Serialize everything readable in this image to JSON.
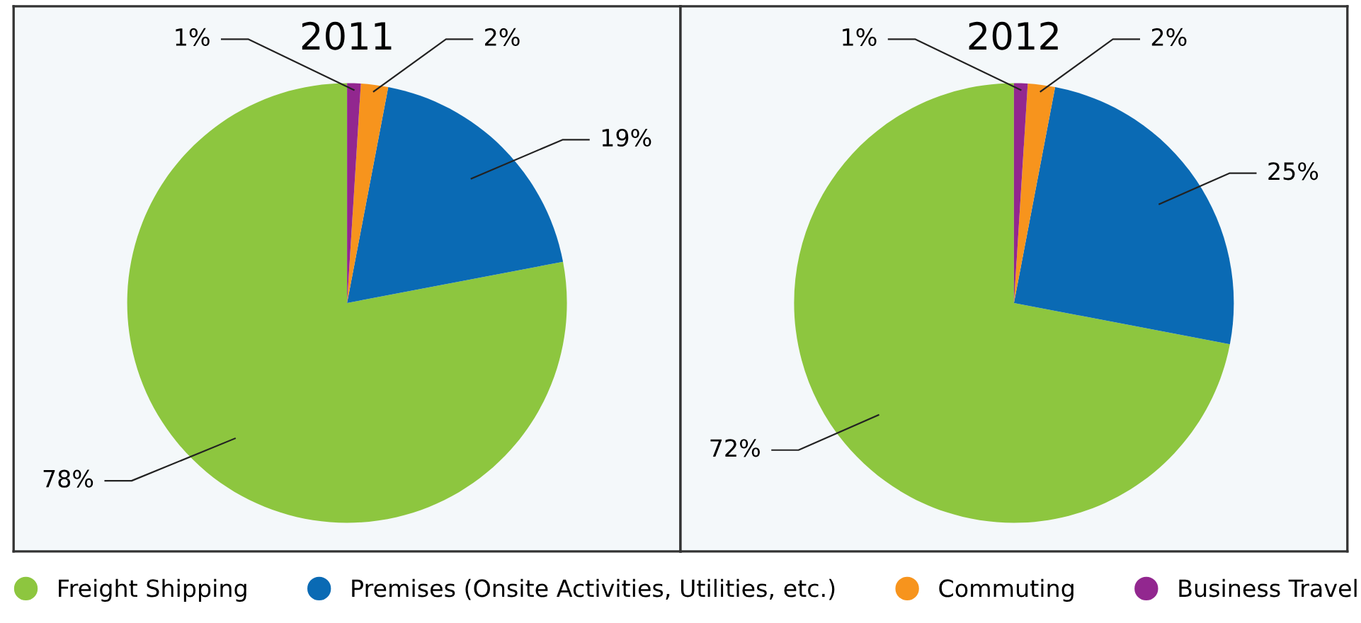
{
  "chart_data": [
    {
      "type": "pie",
      "title": "2011",
      "categories": [
        "Freight Shipping",
        "Premises (Onsite Activities, Utilities, etc.)",
        "Commuting",
        "Business Travel"
      ],
      "values": [
        78,
        19,
        2,
        1
      ],
      "colors": [
        "#8dc63f",
        "#0a6ab4",
        "#f7941d",
        "#92278f"
      ],
      "value_labels": [
        "78%",
        "19%",
        "2%",
        "1%"
      ],
      "legend": "bottom"
    },
    {
      "type": "pie",
      "title": "2012",
      "categories": [
        null,
        null,
        null,
        null
      ],
      "values": [
        72,
        25,
        2,
        1
      ],
      "colors": [
        "#8dc63f",
        "#0a6ab4",
        "#f7941d",
        "#92278f"
      ],
      "value_labels": [
        "72%",
        "25%",
        "2%",
        "1%"
      ]
    }
  ]
}
